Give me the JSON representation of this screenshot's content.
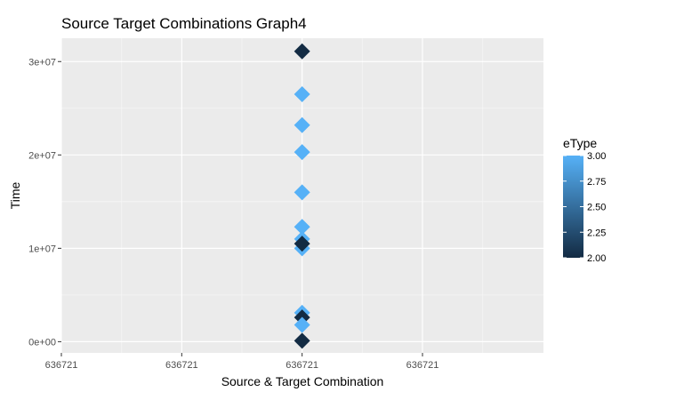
{
  "chart_data": {
    "type": "scatter",
    "title": "Source Target Combinations Graph4",
    "xlabel": "Source & Target Combination",
    "ylabel": "Time",
    "x_tick_labels": [
      "636721",
      "636721",
      "636721",
      "636721"
    ],
    "y_ticks": [
      {
        "value": 0,
        "label": "0e+00"
      },
      {
        "value": 10000000,
        "label": "1e+07"
      },
      {
        "value": 20000000,
        "label": "2e+07"
      },
      {
        "value": 30000000,
        "label": "3e+07"
      }
    ],
    "ylim": [
      -1200000,
      32500000
    ],
    "grid": true,
    "marker": "diamond",
    "points": [
      {
        "x": 636721,
        "y": 31100000,
        "eType": 2
      },
      {
        "x": 636721,
        "y": 26500000,
        "eType": 3
      },
      {
        "x": 636721,
        "y": 23200000,
        "eType": 3
      },
      {
        "x": 636721,
        "y": 20300000,
        "eType": 3
      },
      {
        "x": 636721,
        "y": 16000000,
        "eType": 3
      },
      {
        "x": 636721,
        "y": 12300000,
        "eType": 3
      },
      {
        "x": 636721,
        "y": 11000000,
        "eType": 3
      },
      {
        "x": 636721,
        "y": 10000000,
        "eType": 3
      },
      {
        "x": 636721,
        "y": 10500000,
        "eType": 2
      },
      {
        "x": 636721,
        "y": 3100000,
        "eType": 3
      },
      {
        "x": 636721,
        "y": 2600000,
        "eType": 2
      },
      {
        "x": 636721,
        "y": 1800000,
        "eType": 3
      },
      {
        "x": 636721,
        "y": 100000,
        "eType": 2
      }
    ],
    "legend": {
      "title": "eType",
      "position": "right",
      "range": [
        2.0,
        3.0
      ],
      "ticks": [
        "3.00",
        "2.75",
        "2.50",
        "2.25",
        "2.00"
      ],
      "low_color": "#132b43",
      "high_color": "#56b1f7"
    },
    "colors": {
      "panel_background": "#ebebeb",
      "grid_major": "#ffffff",
      "grid_minor": "#f5f5f5"
    }
  }
}
